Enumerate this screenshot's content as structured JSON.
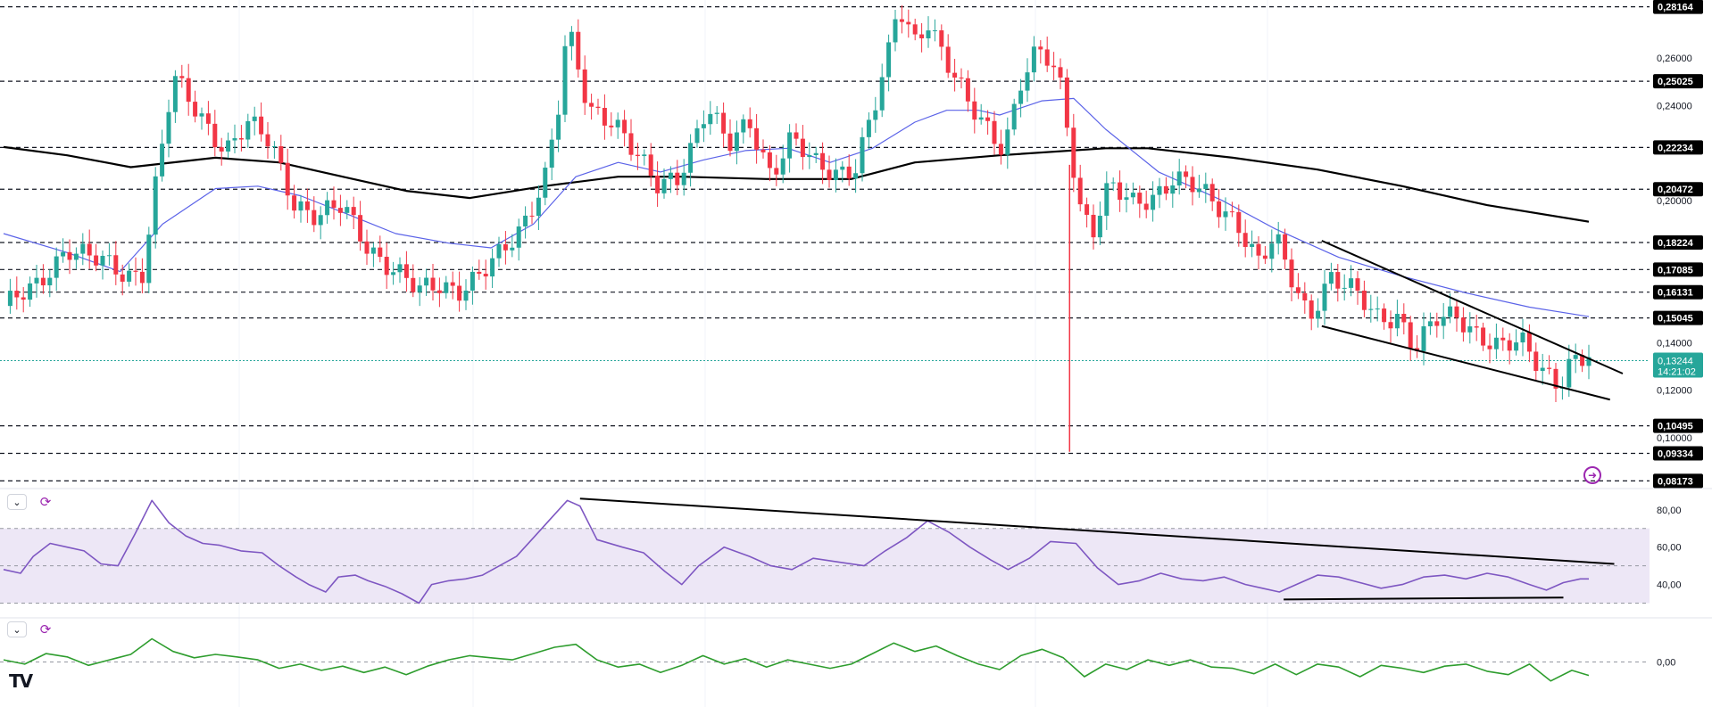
{
  "colors": {
    "bull": "#26a69a",
    "bear": "#f23645",
    "ema_short": "#5b63e8",
    "ema_long": "#000000",
    "rsi": "#7e57c2",
    "rsi_band": "#ede7f6",
    "oscillator": "#2e9d2e",
    "price_tag_bg": "#26a69a",
    "level_tag_bg": "#000000"
  },
  "chart_data": [
    {
      "type": "candlestick",
      "panel": "price",
      "ylim": [
        0.0785,
        0.2845
      ],
      "y_ticks": [
        "0,26000",
        "0,24000",
        "0,20000",
        "0,14000",
        "0,12000",
        "0,10000"
      ],
      "y_tick_values": [
        0.26,
        0.24,
        0.2,
        0.14,
        0.12,
        0.1
      ],
      "levels": [
        {
          "label": "0,28164",
          "value": 0.28164
        },
        {
          "label": "0,25025",
          "value": 0.25025
        },
        {
          "label": "0,22234",
          "value": 0.22234
        },
        {
          "label": "0,20472",
          "value": 0.20472
        },
        {
          "label": "0,18224",
          "value": 0.18224
        },
        {
          "label": "0,17085",
          "value": 0.17085
        },
        {
          "label": "0,16131",
          "value": 0.16131
        },
        {
          "label": "0,15045",
          "value": 0.15045
        },
        {
          "label": "0,10495",
          "value": 0.10495
        },
        {
          "label": "0,09334",
          "value": 0.09334
        },
        {
          "label": "0,08173",
          "value": 0.08173
        }
      ],
      "current_price": {
        "label": "0,13244",
        "value": 0.13244,
        "countdown": "14:21:02"
      },
      "candles": 240,
      "close_path": [
        [
          0,
          0.1555
        ],
        [
          15,
          0.1625
        ],
        [
          30,
          0.181
        ],
        [
          45,
          0.174
        ],
        [
          58,
          0.168
        ],
        [
          66,
          0.171
        ],
        [
          70,
          0.198
        ],
        [
          80,
          0.251
        ],
        [
          92,
          0.236
        ],
        [
          105,
          0.222
        ],
        [
          115,
          0.232
        ],
        [
          126,
          0.224
        ],
        [
          137,
          0.2
        ],
        [
          148,
          0.193
        ],
        [
          160,
          0.197
        ],
        [
          172,
          0.181
        ],
        [
          185,
          0.17
        ],
        [
          196,
          0.161
        ],
        [
          205,
          0.165
        ],
        [
          215,
          0.163
        ],
        [
          225,
          0.168
        ],
        [
          235,
          0.177
        ],
        [
          245,
          0.19
        ],
        [
          256,
          0.212
        ],
        [
          262,
          0.24
        ],
        [
          266,
          0.272
        ],
        [
          276,
          0.238
        ],
        [
          288,
          0.235
        ],
        [
          298,
          0.22
        ],
        [
          308,
          0.205
        ],
        [
          318,
          0.21
        ],
        [
          332,
          0.24
        ],
        [
          342,
          0.222
        ],
        [
          352,
          0.233
        ],
        [
          362,
          0.212
        ],
        [
          372,
          0.226
        ],
        [
          382,
          0.215
        ],
        [
          392,
          0.212
        ],
        [
          402,
          0.215
        ],
        [
          412,
          0.242
        ],
        [
          418,
          0.262
        ],
        [
          422,
          0.282
        ],
        [
          430,
          0.268
        ],
        [
          436,
          0.277
        ],
        [
          445,
          0.258
        ],
        [
          455,
          0.24
        ],
        [
          465,
          0.23
        ],
        [
          472,
          0.223
        ],
        [
          480,
          0.25
        ],
        [
          488,
          0.262
        ],
        [
          494,
          0.258
        ],
        [
          500,
          0.245
        ],
        [
          503,
          0.225
        ],
        [
          508,
          0.198
        ],
        [
          514,
          0.188
        ],
        [
          522,
          0.206
        ],
        [
          532,
          0.198
        ],
        [
          542,
          0.202
        ],
        [
          552,
          0.21
        ],
        [
          562,
          0.205
        ],
        [
          572,
          0.198
        ],
        [
          582,
          0.192
        ],
        [
          592,
          0.174
        ],
        [
          600,
          0.183
        ],
        [
          610,
          0.162
        ],
        [
          616,
          0.152
        ],
        [
          626,
          0.168
        ],
        [
          638,
          0.16
        ],
        [
          648,
          0.151
        ],
        [
          658,
          0.152
        ],
        [
          666,
          0.137
        ],
        [
          676,
          0.149
        ],
        [
          686,
          0.152
        ],
        [
          696,
          0.144
        ],
        [
          706,
          0.137
        ],
        [
          716,
          0.14
        ],
        [
          724,
          0.132
        ],
        [
          734,
          0.123
        ],
        [
          739,
          0.131
        ],
        [
          745,
          0.132
        ],
        [
          748,
          0.1335
        ]
      ],
      "ema_short": [
        [
          0,
          0.186
        ],
        [
          30,
          0.178
        ],
        [
          55,
          0.17
        ],
        [
          75,
          0.19
        ],
        [
          100,
          0.205
        ],
        [
          120,
          0.206
        ],
        [
          140,
          0.202
        ],
        [
          160,
          0.195
        ],
        [
          185,
          0.186
        ],
        [
          210,
          0.182
        ],
        [
          230,
          0.18
        ],
        [
          250,
          0.19
        ],
        [
          270,
          0.21
        ],
        [
          290,
          0.216
        ],
        [
          310,
          0.212
        ],
        [
          330,
          0.217
        ],
        [
          350,
          0.221
        ],
        [
          370,
          0.222
        ],
        [
          390,
          0.216
        ],
        [
          410,
          0.222
        ],
        [
          430,
          0.233
        ],
        [
          445,
          0.238
        ],
        [
          460,
          0.238
        ],
        [
          470,
          0.236
        ],
        [
          490,
          0.242
        ],
        [
          505,
          0.243
        ],
        [
          520,
          0.23
        ],
        [
          545,
          0.212
        ],
        [
          575,
          0.2
        ],
        [
          600,
          0.188
        ],
        [
          630,
          0.176
        ],
        [
          660,
          0.168
        ],
        [
          690,
          0.161
        ],
        [
          720,
          0.155
        ],
        [
          748,
          0.151
        ]
      ],
      "ema_long": [
        [
          0,
          0.2225
        ],
        [
          30,
          0.219
        ],
        [
          60,
          0.214
        ],
        [
          100,
          0.218
        ],
        [
          130,
          0.216
        ],
        [
          160,
          0.21
        ],
        [
          190,
          0.204
        ],
        [
          220,
          0.201
        ],
        [
          255,
          0.206
        ],
        [
          290,
          0.21
        ],
        [
          320,
          0.21
        ],
        [
          360,
          0.209
        ],
        [
          400,
          0.209
        ],
        [
          430,
          0.216
        ],
        [
          470,
          0.219
        ],
        [
          520,
          0.222
        ],
        [
          540,
          0.222
        ],
        [
          580,
          0.218
        ],
        [
          620,
          0.213
        ],
        [
          660,
          0.206
        ],
        [
          700,
          0.198
        ],
        [
          748,
          0.191
        ]
      ],
      "trendlines": [
        {
          "from": [
            622,
            0.183
          ],
          "to": [
            764,
            0.127
          ]
        },
        {
          "from": [
            622,
            0.147
          ],
          "to": [
            758,
            0.116
          ]
        }
      ]
    },
    {
      "type": "line",
      "panel": "rsi",
      "ylim": [
        25,
        88
      ],
      "y_ticks": [
        "80,00",
        "60,00",
        "40,00"
      ],
      "y_tick_values": [
        80,
        60,
        40
      ],
      "band": [
        30,
        70
      ],
      "midline": 50,
      "values": [
        [
          0,
          48
        ],
        [
          8,
          46
        ],
        [
          14,
          55
        ],
        [
          22,
          62
        ],
        [
          30,
          60
        ],
        [
          38,
          58
        ],
        [
          46,
          51
        ],
        [
          54,
          50
        ],
        [
          62,
          67
        ],
        [
          70,
          85
        ],
        [
          78,
          73
        ],
        [
          86,
          66
        ],
        [
          94,
          62
        ],
        [
          102,
          61
        ],
        [
          112,
          58
        ],
        [
          122,
          57
        ],
        [
          130,
          50
        ],
        [
          138,
          44
        ],
        [
          144,
          40
        ],
        [
          152,
          36
        ],
        [
          158,
          44
        ],
        [
          166,
          45
        ],
        [
          172,
          42
        ],
        [
          180,
          39
        ],
        [
          188,
          35
        ],
        [
          196,
          30
        ],
        [
          202,
          40
        ],
        [
          210,
          42
        ],
        [
          218,
          43
        ],
        [
          226,
          45
        ],
        [
          234,
          50
        ],
        [
          242,
          55
        ],
        [
          250,
          65
        ],
        [
          258,
          75
        ],
        [
          266,
          85
        ],
        [
          272,
          82
        ],
        [
          280,
          64
        ],
        [
          292,
          60
        ],
        [
          302,
          57
        ],
        [
          312,
          47
        ],
        [
          320,
          40
        ],
        [
          328,
          50
        ],
        [
          340,
          60
        ],
        [
          352,
          55
        ],
        [
          362,
          50
        ],
        [
          372,
          48
        ],
        [
          382,
          54
        ],
        [
          394,
          52
        ],
        [
          406,
          50
        ],
        [
          416,
          58
        ],
        [
          426,
          65
        ],
        [
          436,
          74
        ],
        [
          446,
          68
        ],
        [
          456,
          60
        ],
        [
          466,
          53
        ],
        [
          474,
          48
        ],
        [
          484,
          54
        ],
        [
          494,
          63
        ],
        [
          506,
          62
        ],
        [
          516,
          49
        ],
        [
          526,
          40
        ],
        [
          536,
          42
        ],
        [
          546,
          46
        ],
        [
          556,
          43
        ],
        [
          566,
          42
        ],
        [
          576,
          44
        ],
        [
          586,
          40
        ],
        [
          594,
          38
        ],
        [
          602,
          36
        ],
        [
          610,
          40
        ],
        [
          620,
          45
        ],
        [
          630,
          44
        ],
        [
          640,
          41
        ],
        [
          650,
          38
        ],
        [
          660,
          40
        ],
        [
          670,
          44
        ],
        [
          680,
          45
        ],
        [
          690,
          43
        ],
        [
          700,
          46
        ],
        [
          710,
          44
        ],
        [
          720,
          40
        ],
        [
          728,
          37
        ],
        [
          736,
          41
        ],
        [
          744,
          43
        ],
        [
          748,
          43
        ]
      ],
      "trendlines": [
        {
          "from": [
            272,
            86
          ],
          "to": [
            760,
            51
          ]
        },
        {
          "from": [
            604,
            32
          ],
          "to": [
            736,
            33
          ]
        }
      ]
    },
    {
      "type": "line",
      "panel": "oscillator",
      "ylim": [
        -0.9,
        0.9
      ],
      "y_ticks": [
        "0,00"
      ],
      "y_tick_values": [
        0
      ],
      "midline": 0,
      "values": [
        [
          0,
          0.05
        ],
        [
          10,
          -0.05
        ],
        [
          20,
          0.2
        ],
        [
          30,
          0.12
        ],
        [
          40,
          -0.08
        ],
        [
          50,
          0.05
        ],
        [
          60,
          0.18
        ],
        [
          70,
          0.55
        ],
        [
          80,
          0.25
        ],
        [
          90,
          0.1
        ],
        [
          100,
          0.18
        ],
        [
          110,
          0.12
        ],
        [
          120,
          0.05
        ],
        [
          130,
          -0.15
        ],
        [
          140,
          -0.05
        ],
        [
          150,
          -0.2
        ],
        [
          160,
          -0.1
        ],
        [
          170,
          -0.25
        ],
        [
          180,
          -0.12
        ],
        [
          190,
          -0.3
        ],
        [
          200,
          -0.1
        ],
        [
          210,
          0.05
        ],
        [
          220,
          0.15
        ],
        [
          230,
          0.1
        ],
        [
          240,
          0.05
        ],
        [
          250,
          0.2
        ],
        [
          260,
          0.35
        ],
        [
          270,
          0.42
        ],
        [
          280,
          0.05
        ],
        [
          290,
          -0.12
        ],
        [
          300,
          -0.05
        ],
        [
          310,
          -0.25
        ],
        [
          320,
          -0.08
        ],
        [
          330,
          0.15
        ],
        [
          340,
          -0.05
        ],
        [
          350,
          0.08
        ],
        [
          360,
          -0.12
        ],
        [
          370,
          0.05
        ],
        [
          380,
          -0.05
        ],
        [
          390,
          -0.15
        ],
        [
          400,
          -0.05
        ],
        [
          410,
          0.2
        ],
        [
          420,
          0.45
        ],
        [
          430,
          0.25
        ],
        [
          440,
          0.38
        ],
        [
          450,
          0.15
        ],
        [
          460,
          -0.05
        ],
        [
          470,
          -0.18
        ],
        [
          480,
          0.15
        ],
        [
          490,
          0.3
        ],
        [
          500,
          0.1
        ],
        [
          510,
          -0.35
        ],
        [
          520,
          -0.05
        ],
        [
          530,
          -0.18
        ],
        [
          540,
          0.05
        ],
        [
          550,
          -0.08
        ],
        [
          560,
          0.05
        ],
        [
          570,
          -0.12
        ],
        [
          580,
          -0.15
        ],
        [
          590,
          -0.28
        ],
        [
          600,
          -0.05
        ],
        [
          610,
          -0.3
        ],
        [
          620,
          -0.05
        ],
        [
          630,
          -0.12
        ],
        [
          640,
          -0.35
        ],
        [
          650,
          -0.08
        ],
        [
          660,
          -0.15
        ],
        [
          670,
          -0.25
        ],
        [
          680,
          -0.1
        ],
        [
          690,
          -0.05
        ],
        [
          700,
          -0.22
        ],
        [
          710,
          -0.3
        ],
        [
          720,
          -0.05
        ],
        [
          730,
          -0.45
        ],
        [
          740,
          -0.2
        ],
        [
          748,
          -0.32
        ]
      ]
    }
  ]
}
